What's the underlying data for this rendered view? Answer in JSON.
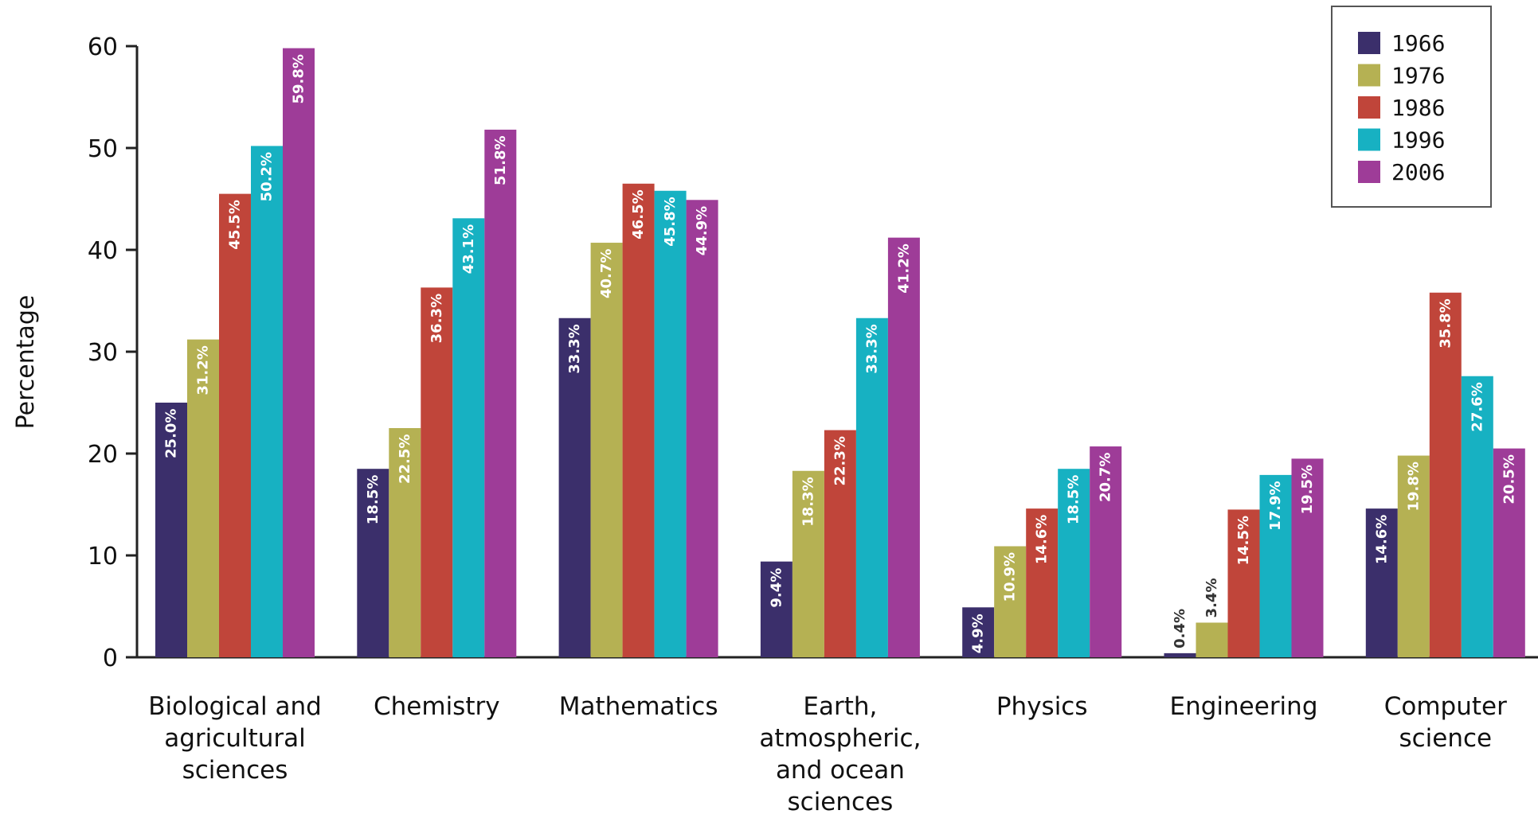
{
  "chart_data": {
    "type": "bar",
    "title": "",
    "xlabel": "",
    "ylabel": "Percentage",
    "ylim": [
      0,
      60
    ],
    "yticks": [
      0,
      10,
      20,
      30,
      40,
      50,
      60
    ],
    "grid": false,
    "legend_position": "top-right",
    "categories": [
      [
        "Biological and",
        "agricultural",
        "sciences"
      ],
      [
        "Chemistry"
      ],
      [
        "Mathematics"
      ],
      [
        "Earth,",
        "atmospheric,",
        "and ocean",
        "sciences"
      ],
      [
        "Physics"
      ],
      [
        "Engineering"
      ],
      [
        "Computer",
        "science"
      ]
    ],
    "series": [
      {
        "name": "1966",
        "color": "#3b2f6b",
        "values": [
          25.0,
          18.5,
          33.3,
          9.4,
          4.9,
          0.4,
          14.6
        ],
        "labels": [
          "25.0%",
          "18.5%",
          "33.3%",
          "9.4%",
          "4.9%",
          "0.4%",
          "14.6%"
        ]
      },
      {
        "name": "1976",
        "color": "#b5b153",
        "values": [
          31.2,
          22.5,
          40.7,
          18.3,
          10.9,
          3.4,
          19.8
        ],
        "labels": [
          "31.2%",
          "22.5%",
          "40.7%",
          "18.3%",
          "10.9%",
          "3.4%",
          "19.8%"
        ]
      },
      {
        "name": "1986",
        "color": "#c0453a",
        "values": [
          45.5,
          36.3,
          46.5,
          22.3,
          14.6,
          14.5,
          35.8
        ],
        "labels": [
          "45.5%",
          "36.3%",
          "46.5%",
          "22.3%",
          "14.6%",
          "14.5%",
          "35.8%"
        ]
      },
      {
        "name": "1996",
        "color": "#17b1c2",
        "values": [
          50.2,
          43.1,
          45.8,
          33.3,
          18.5,
          17.9,
          27.6
        ],
        "labels": [
          "50.2%",
          "43.1%",
          "45.8%",
          "33.3%",
          "18.5%",
          "17.9%",
          "27.6%"
        ]
      },
      {
        "name": "2006",
        "color": "#9e3c98",
        "values": [
          59.8,
          51.8,
          44.9,
          41.2,
          20.7,
          19.5,
          20.5
        ],
        "labels": [
          "59.8%",
          "51.8%",
          "44.9%",
          "41.2%",
          "20.7%",
          "19.5%",
          "20.5%"
        ]
      }
    ]
  }
}
